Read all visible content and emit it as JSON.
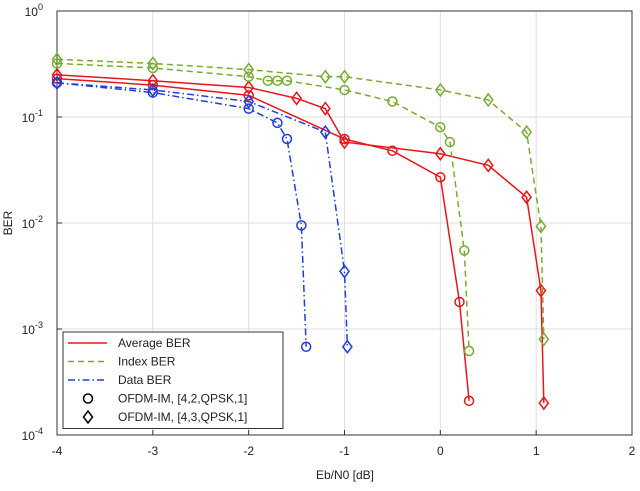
{
  "chart_data": {
    "type": "line",
    "xlabel": "Eb/N0 [dB]",
    "ylabel": "BER",
    "xlim": [
      -4,
      2
    ],
    "xticks": [
      -4,
      -3,
      -2,
      -1,
      0,
      1,
      2
    ],
    "ylim": [
      0.0001,
      1
    ],
    "log_y": true,
    "grid": true,
    "legend": "lower left",
    "yticks": [
      {
        "value": 0.0001,
        "label": "10",
        "exponent": "-4"
      },
      {
        "value": 0.001,
        "label": "10",
        "exponent": "-3"
      },
      {
        "value": 0.01,
        "label": "10",
        "exponent": "-2"
      },
      {
        "value": 0.1,
        "label": "10",
        "exponent": "-1"
      },
      {
        "value": 1,
        "label": "10",
        "exponent": "0"
      }
    ],
    "line_styles": [
      {
        "name": "Average BER",
        "color": "#e8161b",
        "dash": "solid"
      },
      {
        "name": "Index BER",
        "color": "#77ac30",
        "dash": "dashed"
      },
      {
        "name": "Data BER",
        "color": "#1f3fd8",
        "dash": "dashdot"
      }
    ],
    "marker_styles": [
      {
        "name": "OFDM-IM, [4,2,QPSK,1]",
        "marker": "circle"
      },
      {
        "name": "OFDM-IM, [4,3,QPSK,1]",
        "marker": "diamond"
      }
    ],
    "series": [
      {
        "line": 0,
        "marker": 0,
        "x": [
          -4,
          -3,
          -2,
          -1,
          -0.5,
          0,
          0.2,
          0.3
        ],
        "values": [
          0.23,
          0.2,
          0.16,
          0.062,
          0.048,
          0.027,
          0.0018,
          0.00021
        ]
      },
      {
        "line": 0,
        "marker": 1,
        "x": [
          -4,
          -3,
          -2,
          -1.5,
          -1.2,
          -1,
          0,
          0.5,
          0.9,
          1.05,
          1.08
        ],
        "values": [
          0.25,
          0.22,
          0.19,
          0.15,
          0.12,
          0.058,
          0.045,
          0.035,
          0.0175,
          0.0023,
          0.0002
        ]
      },
      {
        "line": 1,
        "marker": 0,
        "x": [
          -4,
          -3,
          -2,
          -1.8,
          -1.7,
          -1.6,
          -1,
          -0.5,
          0,
          0.1,
          0.25,
          0.3
        ],
        "values": [
          0.32,
          0.29,
          0.24,
          0.22,
          0.22,
          0.22,
          0.18,
          0.14,
          0.08,
          0.058,
          0.0055,
          0.00062
        ]
      },
      {
        "line": 1,
        "marker": 1,
        "x": [
          -4,
          -3,
          -2,
          -1.2,
          -1,
          0,
          0.5,
          0.9,
          1.05,
          1.08
        ],
        "values": [
          0.35,
          0.32,
          0.28,
          0.24,
          0.24,
          0.18,
          0.145,
          0.072,
          0.0093,
          0.0008
        ]
      },
      {
        "line": 2,
        "marker": 0,
        "x": [
          -4,
          -3,
          -2,
          -1.7,
          -1.6,
          -1.45,
          -1.4
        ],
        "values": [
          0.21,
          0.17,
          0.12,
          0.088,
          0.062,
          0.0095,
          0.00068
        ]
      },
      {
        "line": 2,
        "marker": 1,
        "x": [
          -4,
          -3,
          -2,
          -1.2,
          -1,
          -0.97
        ],
        "values": [
          0.21,
          0.18,
          0.14,
          0.072,
          0.0035,
          0.00068
        ]
      }
    ]
  }
}
